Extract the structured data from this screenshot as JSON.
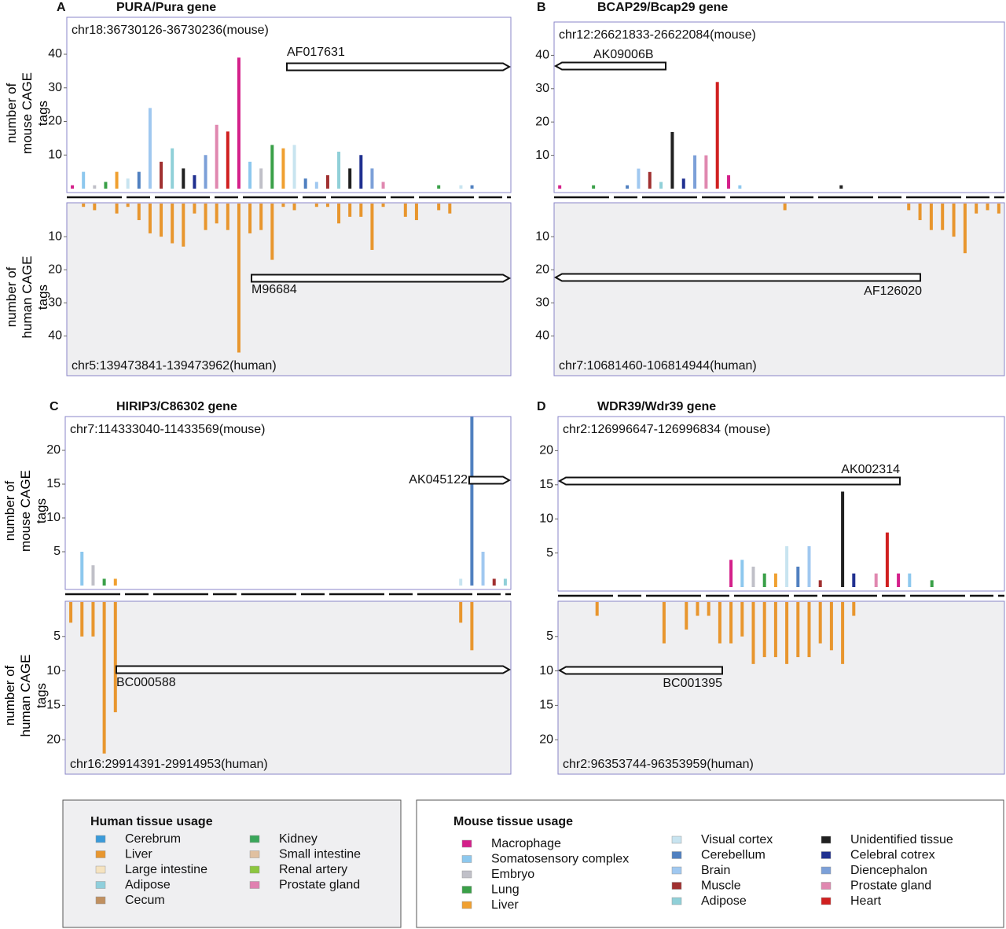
{
  "panels": [
    {
      "letter": "A",
      "title": "PURA/Pura gene",
      "y_label_mouse": "number of mouse CAGE tags",
      "y_label_human": "number of human CAGE tags",
      "mouse": {
        "region": "chr18:36730126-36730236(mouse)",
        "ylim": [
          0,
          51
        ],
        "yticks": [
          10,
          20,
          30,
          40
        ],
        "transcript": "AF017631",
        "values": [
          1,
          5,
          1,
          2,
          5,
          3,
          5,
          24,
          8,
          12,
          6,
          4,
          10,
          19,
          17,
          39,
          8,
          6,
          13,
          12,
          13,
          3,
          2,
          4,
          11,
          6,
          10,
          6,
          2,
          0,
          0,
          0,
          0,
          1,
          0,
          1,
          1,
          0,
          0,
          0
        ]
      },
      "human": {
        "region": "chr5:139473841-139473962(human)",
        "ylim": [
          0,
          52
        ],
        "yticks": [
          10,
          20,
          30,
          40
        ],
        "transcript": "M96684",
        "color": "#e8962e",
        "values": [
          0,
          1,
          2,
          0,
          3,
          1,
          5,
          9,
          10,
          12,
          13,
          3,
          8,
          6,
          8,
          45,
          9,
          8,
          17,
          1,
          2,
          0,
          1,
          1,
          6,
          4,
          4,
          14,
          1,
          0,
          4,
          5,
          0,
          2,
          3,
          0,
          0,
          0,
          0,
          0
        ]
      }
    },
    {
      "letter": "B",
      "title": "BCAP29/Bcap29 gene",
      "mouse": {
        "region": "chr12:26621833-26622084(mouse)",
        "ylim": [
          0,
          50
        ],
        "yticks": [
          10,
          20,
          30,
          40
        ],
        "transcript": "AK09006B",
        "values": [
          1,
          0,
          0,
          1,
          0,
          0,
          1,
          6,
          5,
          2,
          17,
          3,
          10,
          10,
          32,
          4,
          1,
          0,
          0,
          0,
          0,
          0,
          0,
          0,
          0,
          1,
          0,
          0,
          0,
          0,
          0,
          0,
          0,
          0,
          0,
          0,
          0,
          0,
          0,
          0
        ]
      },
      "human": {
        "region": "chr7:10681460-106814944(human)",
        "ylim": [
          0,
          52
        ],
        "yticks": [
          10,
          20,
          30,
          40
        ],
        "transcript": "AF126020",
        "color": "#e8962e",
        "values": [
          0,
          0,
          0,
          0,
          0,
          0,
          0,
          0,
          0,
          0,
          0,
          0,
          0,
          0,
          0,
          0,
          0,
          0,
          0,
          0,
          2,
          0,
          0,
          0,
          0,
          0,
          0,
          0,
          0,
          0,
          0,
          2,
          5,
          8,
          8,
          10,
          15,
          3,
          2,
          3
        ]
      }
    },
    {
      "letter": "C",
      "title": "HIRIP3/C86302 gene",
      "y_label_mouse": "number of mouse CAGE tags",
      "y_label_human": "number of human CAGE tags",
      "mouse": {
        "region": "chr7:114333040-11433569(mouse)",
        "ylim": [
          0,
          25
        ],
        "yticks": [
          5,
          10,
          15,
          20
        ],
        "transcript": "AK045122",
        "values": [
          0,
          5,
          3,
          1,
          1,
          0,
          0,
          0,
          0,
          0,
          0,
          0,
          0,
          0,
          0,
          0,
          0,
          0,
          0,
          0,
          0,
          0,
          0,
          0,
          0,
          0,
          0,
          0,
          0,
          0,
          0,
          0,
          0,
          0,
          0,
          1,
          25,
          5,
          1,
          1
        ]
      },
      "human": {
        "region": "chr16:29914391-29914953(human)",
        "ylim": [
          0,
          25
        ],
        "yticks": [
          5,
          10,
          15,
          20
        ],
        "transcript": "BC000588",
        "color": "#e8962e",
        "values": [
          3,
          5,
          5,
          22,
          16,
          0,
          0,
          0,
          0,
          0,
          0,
          0,
          0,
          0,
          0,
          0,
          0,
          0,
          0,
          0,
          0,
          0,
          0,
          0,
          0,
          0,
          0,
          0,
          0,
          0,
          0,
          0,
          0,
          0,
          0,
          3,
          7,
          0,
          0,
          0
        ]
      }
    },
    {
      "letter": "D",
      "title": "WDR39/Wdr39  gene",
      "mouse": {
        "region": "chr2:126996647-126996834 (mouse)",
        "ylim": [
          0,
          25
        ],
        "yticks": [
          5,
          10,
          15,
          20
        ],
        "transcript": "AK002314",
        "values": [
          0,
          0,
          0,
          0,
          0,
          0,
          0,
          0,
          0,
          0,
          0,
          0,
          0,
          0,
          0,
          4,
          4,
          3,
          2,
          2,
          6,
          3,
          6,
          1,
          0,
          14,
          2,
          0,
          2,
          8,
          2,
          2,
          0,
          1,
          0,
          0,
          0,
          0,
          0,
          0
        ]
      },
      "human": {
        "region": "chr2:96353744-96353959(human)",
        "ylim": [
          0,
          25
        ],
        "yticks": [
          5,
          10,
          15,
          20
        ],
        "transcript": "BC001395",
        "color": "#e8962e",
        "values": [
          0,
          0,
          0,
          2,
          0,
          0,
          0,
          0,
          0,
          6,
          0,
          4,
          2,
          2,
          6,
          6,
          5,
          9,
          8,
          8,
          9,
          8,
          8,
          6,
          7,
          9,
          2,
          0,
          0,
          0,
          0,
          0,
          0,
          0,
          0,
          0,
          0,
          0,
          0,
          0
        ]
      }
    }
  ],
  "legends": {
    "human": {
      "title": "Human tissue usage",
      "items": [
        {
          "name": "Cerebrum",
          "color": "#3a9ad9"
        },
        {
          "name": "Liver",
          "color": "#e8962e"
        },
        {
          "name": "Large intestine",
          "color": "#f5e3c0"
        },
        {
          "name": "Adipose",
          "color": "#8fcfdc"
        },
        {
          "name": "Cecum",
          "color": "#c09060"
        },
        {
          "name": "Kidney",
          "color": "#3aa65a"
        },
        {
          "name": "Small intestine",
          "color": "#e0c0a0"
        },
        {
          "name": "Renal artery",
          "color": "#8cc63f"
        },
        {
          "name": "Prostate gland",
          "color": "#e080b0"
        }
      ]
    },
    "mouse": {
      "title": "Mouse tissue usage",
      "items": [
        {
          "name": "Macrophage",
          "color": "#d4208a"
        },
        {
          "name": "Somatosensory complex",
          "color": "#8dc8ee"
        },
        {
          "name": "Embryo",
          "color": "#c0c0c8"
        },
        {
          "name": "Lung",
          "color": "#3aa048"
        },
        {
          "name": "Liver",
          "color": "#f0a030"
        },
        {
          "name": "Visual cortex",
          "color": "#c8e4f0"
        },
        {
          "name": "Cerebellum",
          "color": "#5080c0"
        },
        {
          "name": "Brain",
          "color": "#a0c8f0"
        },
        {
          "name": "Muscle",
          "color": "#a03030"
        },
        {
          "name": "Adipose",
          "color": "#90d0d8"
        },
        {
          "name": "Unidentified tissue",
          "color": "#202020"
        },
        {
          "name": "Celebral cotrex",
          "color": "#203090"
        },
        {
          "name": "Diencephalon",
          "color": "#7ca0d8"
        },
        {
          "name": "Prostate gland",
          "color": "#e088b0"
        },
        {
          "name": "Heart",
          "color": "#d02020"
        }
      ]
    }
  }
}
